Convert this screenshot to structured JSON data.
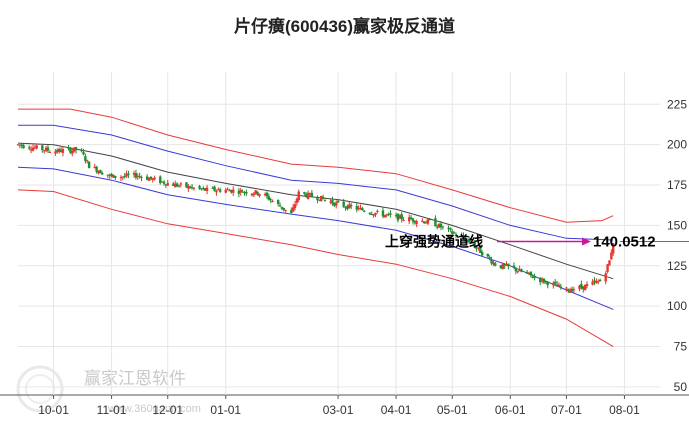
{
  "title": "片仔癀(600436)赢家极反通道",
  "watermark": {
    "text": "赢家江恩软件",
    "url": "www.360gann.com"
  },
  "colors": {
    "up": "#e8352d",
    "down": "#1f8f2e",
    "outer_band": "#e83a3a",
    "inner_band": "#3a3ad8",
    "middle_line": "#444444",
    "arrow": "#c8189c",
    "grid": "#e6e6e6",
    "ref_line": "#2a9d2a"
  },
  "chart_data": {
    "type": "candlestick",
    "title": "片仔癀(600436)赢家极反通道",
    "y_ticks": [
      50,
      75,
      100,
      125,
      150,
      175,
      200,
      225
    ],
    "ylim": [
      45,
      245
    ],
    "x_ticks": [
      "10-01",
      "11-01",
      "12-01",
      "01-01",
      "03-01",
      "04-01",
      "05-01",
      "06-01",
      "07-01",
      "08-01"
    ],
    "x_tick_dates": [
      "2023-10-01",
      "2023-11-01",
      "2023-12-01",
      "2024-01-01",
      "2024-03-01",
      "2024-04-01",
      "2024-05-01",
      "2024-06-01",
      "2024-07-01",
      "2024-08-01"
    ],
    "xlim": [
      "2023-09-12",
      "2024-08-20"
    ],
    "grid": true,
    "annotation": {
      "label": "上穿强势通道线",
      "value": "140.0512",
      "price": 140.05
    },
    "bands": {
      "outer_upper": [
        [
          "2023-09-12",
          222
        ],
        [
          "2023-10-10",
          222
        ],
        [
          "2023-11-01",
          217
        ],
        [
          "2023-12-01",
          206
        ],
        [
          "2024-01-01",
          197
        ],
        [
          "2024-02-05",
          188
        ],
        [
          "2024-03-01",
          186
        ],
        [
          "2024-04-01",
          182
        ],
        [
          "2024-05-01",
          172
        ],
        [
          "2024-06-01",
          161
        ],
        [
          "2024-07-01",
          152
        ],
        [
          "2024-07-20",
          153
        ],
        [
          "2024-07-26",
          156
        ]
      ],
      "inner_upper": [
        [
          "2023-09-12",
          212
        ],
        [
          "2023-10-01",
          212
        ],
        [
          "2023-11-01",
          206
        ],
        [
          "2023-12-01",
          196
        ],
        [
          "2024-01-01",
          187
        ],
        [
          "2024-02-05",
          178
        ],
        [
          "2024-03-01",
          176
        ],
        [
          "2024-04-01",
          172
        ],
        [
          "2024-05-01",
          162
        ],
        [
          "2024-06-01",
          150
        ],
        [
          "2024-07-01",
          142
        ],
        [
          "2024-07-26",
          141
        ]
      ],
      "middle": [
        [
          "2023-09-12",
          201
        ],
        [
          "2023-10-01",
          200
        ],
        [
          "2023-11-01",
          193
        ],
        [
          "2023-12-01",
          183
        ],
        [
          "2024-01-01",
          176
        ],
        [
          "2024-02-05",
          169
        ],
        [
          "2024-03-01",
          166
        ],
        [
          "2024-04-01",
          160
        ],
        [
          "2024-05-01",
          150
        ],
        [
          "2024-06-01",
          138
        ],
        [
          "2024-07-01",
          126
        ],
        [
          "2024-07-26",
          117
        ]
      ],
      "inner_lower": [
        [
          "2023-09-12",
          186
        ],
        [
          "2023-10-01",
          185
        ],
        [
          "2023-11-01",
          178
        ],
        [
          "2023-12-01",
          169
        ],
        [
          "2024-01-01",
          163
        ],
        [
          "2024-02-05",
          157
        ],
        [
          "2024-03-01",
          153
        ],
        [
          "2024-04-01",
          147
        ],
        [
          "2024-05-01",
          137
        ],
        [
          "2024-06-01",
          125
        ],
        [
          "2024-07-01",
          110
        ],
        [
          "2024-07-26",
          98
        ]
      ],
      "outer_lower": [
        [
          "2023-09-12",
          172
        ],
        [
          "2023-10-01",
          171
        ],
        [
          "2023-11-01",
          160
        ],
        [
          "2023-12-01",
          151
        ],
        [
          "2024-01-01",
          145
        ],
        [
          "2024-02-05",
          138
        ],
        [
          "2024-03-01",
          132
        ],
        [
          "2024-04-01",
          126
        ],
        [
          "2024-05-01",
          117
        ],
        [
          "2024-06-01",
          106
        ],
        [
          "2024-07-01",
          92
        ],
        [
          "2024-07-26",
          75
        ]
      ]
    },
    "price_path": [
      [
        "2023-09-12",
        200
      ],
      [
        "2023-10-01",
        196
      ],
      [
        "2023-10-15",
        197
      ],
      [
        "2023-10-20",
        187
      ],
      [
        "2023-11-01",
        180
      ],
      [
        "2023-11-15",
        181
      ],
      [
        "2023-12-01",
        176
      ],
      [
        "2023-12-20",
        172
      ],
      [
        "2024-01-01",
        172
      ],
      [
        "2024-01-20",
        170
      ],
      [
        "2024-02-05",
        157
      ],
      [
        "2024-02-09",
        170
      ],
      [
        "2024-02-20",
        167
      ],
      [
        "2024-03-01",
        163
      ],
      [
        "2024-03-20",
        158
      ],
      [
        "2024-04-01",
        155
      ],
      [
        "2024-04-20",
        152
      ],
      [
        "2024-05-10",
        140
      ],
      [
        "2024-05-25",
        125
      ],
      [
        "2024-06-01",
        124
      ],
      [
        "2024-06-20",
        115
      ],
      [
        "2024-07-01",
        110
      ],
      [
        "2024-07-10",
        112
      ],
      [
        "2024-07-20",
        116
      ],
      [
        "2024-07-24",
        128
      ],
      [
        "2024-07-26",
        140
      ]
    ],
    "volatility": 2.2
  }
}
